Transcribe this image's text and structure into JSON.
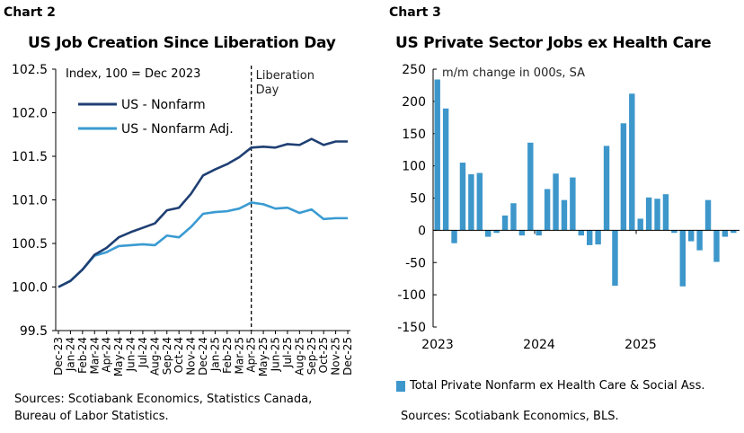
{
  "chart_data": [
    {
      "type": "line",
      "label": "Chart 2",
      "title": "US Job Creation Since Liberation Day",
      "subtitle": "Index, 100 = Dec 2023",
      "ylim": [
        99.5,
        102.5
      ],
      "yticks": [
        "99.5",
        "100.0",
        "100.5",
        "101.0",
        "101.5",
        "102.0",
        "102.5"
      ],
      "categories": [
        "Dec-23",
        "Jan-24",
        "Feb-24",
        "Mar-24",
        "Apr-24",
        "May-24",
        "Jun-24",
        "Jul-24",
        "Aug-24",
        "Sep-24",
        "Oct-24",
        "Nov-24",
        "Dec-24",
        "Jan-25",
        "Feb-25",
        "Mar-25",
        "Apr-25",
        "May-25",
        "Jun-25",
        "Jul-25",
        "Aug-25",
        "Sep-25",
        "Oct-25",
        "Nov-25",
        "Dec-25"
      ],
      "series": [
        {
          "name": "US - Nonfarm",
          "color": "#1f3f73",
          "values": [
            100.0,
            100.07,
            100.2,
            100.37,
            100.45,
            100.57,
            100.63,
            100.68,
            100.73,
            100.88,
            100.91,
            101.07,
            101.28,
            101.35,
            101.41,
            101.49,
            101.6,
            101.61,
            101.6,
            101.64,
            101.63,
            101.7,
            101.63,
            101.67,
            101.67
          ]
        },
        {
          "name": "US - Nonfarm Adj.",
          "color": "#3a9bd2",
          "values": [
            100.0,
            100.07,
            100.2,
            100.36,
            100.4,
            100.47,
            100.48,
            100.49,
            100.48,
            100.59,
            100.57,
            100.69,
            100.84,
            100.86,
            100.87,
            100.9,
            100.97,
            100.95,
            100.9,
            100.91,
            100.85,
            100.89,
            100.78,
            100.79,
            100.79
          ]
        }
      ],
      "annotation": {
        "text_line1": "Liberation",
        "text_line2": "Day",
        "at": "Apr-25"
      },
      "legend": "top-left",
      "source": [
        "Sources: Scotiabank Economics, Statistics Canada,",
        "Bureau of Labor Statistics."
      ]
    },
    {
      "type": "bar",
      "label": "Chart 3",
      "title": "US Private Sector Jobs ex Health Care",
      "subtitle": "m/m change in 000s, SA",
      "ylim": [
        -150,
        250
      ],
      "yticks": [
        "-150",
        "-100",
        "-50",
        "0",
        "50",
        "100",
        "150",
        "200",
        "250"
      ],
      "xticks": [
        "2023",
        "2024",
        "2025"
      ],
      "color": "#3d97cb",
      "series": [
        {
          "name": "Total Private Nonfarm ex Health Care & Social Ass.",
          "values": [
            234,
            189,
            -20,
            105,
            87,
            89,
            -10,
            -4,
            23,
            42,
            -8,
            136,
            -8,
            64,
            88,
            47,
            82,
            -8,
            -23,
            -22,
            131,
            -86,
            166,
            212,
            18,
            51,
            49,
            56,
            -4,
            -87,
            -17,
            -31,
            47,
            -49,
            -10,
            -4
          ]
        }
      ],
      "legend": "bottom",
      "source": "Sources: Scotiabank Economics,  BLS."
    }
  ]
}
